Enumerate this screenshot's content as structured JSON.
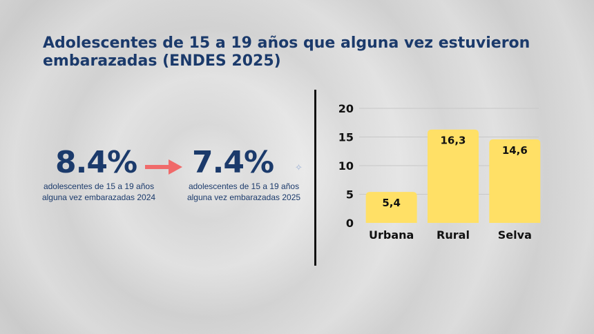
{
  "title": "Adolescentes de 15 a 19 años que alguna vez estuvieron embarazadas (ENDES 2025)",
  "stats": {
    "prev_value": "8.4%",
    "prev_caption_line1": "adolescentes de 15 a 19 años",
    "prev_caption_line2": "alguna vez embarazadas  2024",
    "curr_value": "7.4%",
    "curr_caption_line1": "adolescentes de 15 a 19 años",
    "curr_caption_line2": "alguna vez embarazadas  2025"
  },
  "colors": {
    "title": "#1b3a6b",
    "bar": "#ffe066",
    "arrow": "#f06a6a"
  },
  "icons": {
    "arrow": "arrow-right-icon",
    "sparkle": "sparkle-icon"
  },
  "chart_data": {
    "type": "bar",
    "categories": [
      "Urbana",
      "Rural",
      "Selva"
    ],
    "values": [
      5.4,
      16.3,
      14.6
    ],
    "data_labels": [
      "5,4",
      "16,3",
      "14,6"
    ],
    "yticks": [
      0,
      5,
      10,
      15,
      20
    ],
    "ylim": [
      0,
      20
    ],
    "grid": true,
    "legend": "none"
  }
}
